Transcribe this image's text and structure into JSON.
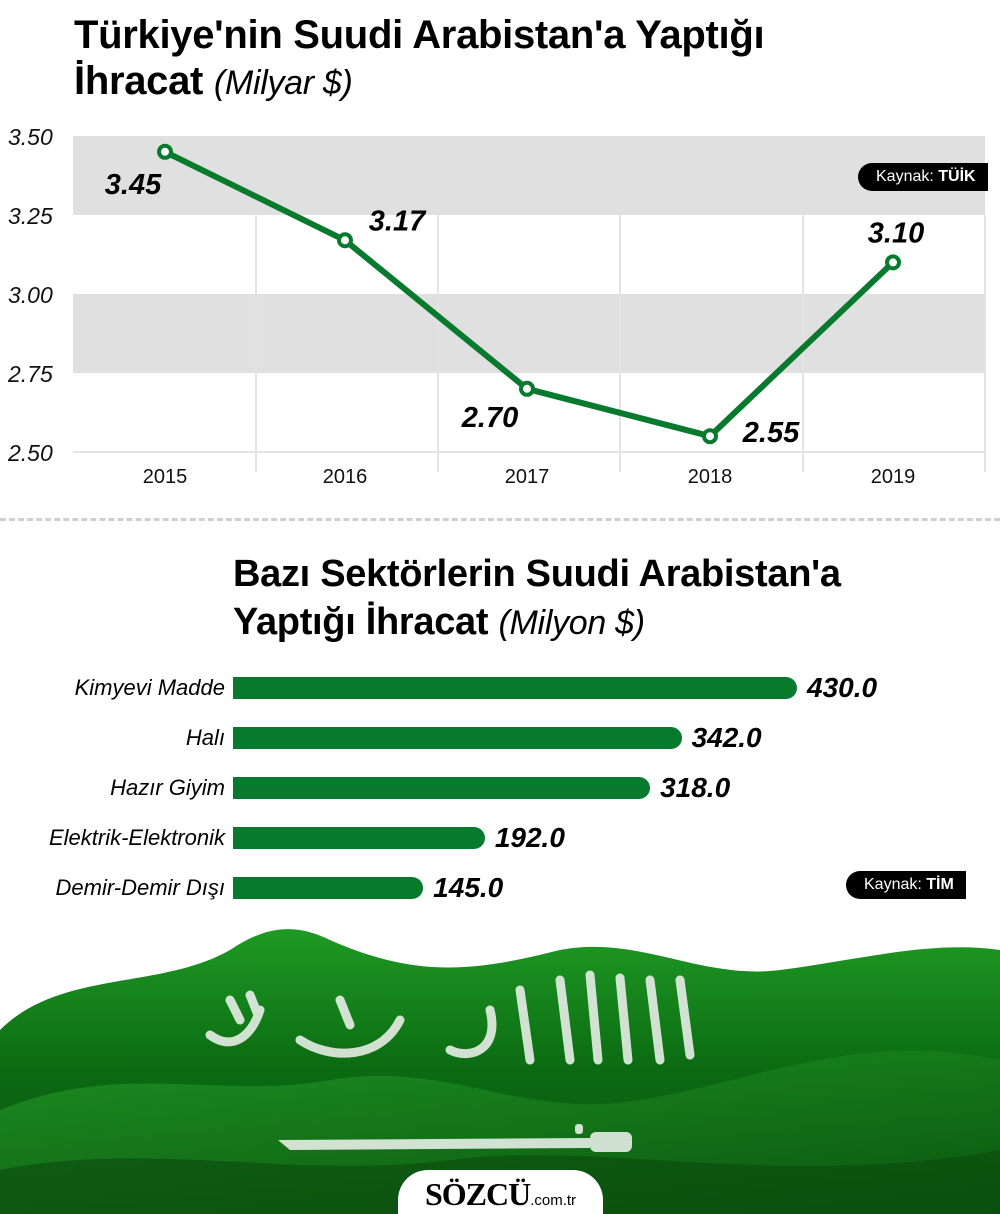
{
  "line_section": {
    "title": "Türkiye'nin Suudi Arabistan'a Yaptığı",
    "title_line2": "İhracat",
    "unit": "(Milyar $)",
    "source_prefix": "Kaynak:",
    "source_name": "TÜİK"
  },
  "bar_section": {
    "title": "Bazı Sektörlerin Suudi Arabistan'a",
    "title_line2": "Yaptığı İhracat",
    "unit": "(Milyon $)",
    "source_prefix": "Kaynak:",
    "source_name": "TİM"
  },
  "footer": {
    "brand": "SÖZCÜ",
    "domain": ".com.tr"
  },
  "colors": {
    "accent_green": "#077a2e",
    "band_gray": "#e0e0e0",
    "grid_gray": "#e4e4e4",
    "badge_black": "#000000"
  },
  "chart_data": [
    {
      "type": "line",
      "title": "Türkiye'nin Suudi Arabistan'a Yaptığı İhracat (Milyar $)",
      "xlabel": "",
      "ylabel": "Milyar $",
      "x": [
        "2015",
        "2016",
        "2017",
        "2018",
        "2019"
      ],
      "series": [
        {
          "name": "İhracat",
          "values": [
            3.45,
            3.17,
            2.7,
            2.55,
            3.1
          ]
        }
      ],
      "data_labels": [
        "3.45",
        "3.17",
        "2.70",
        "2.55",
        "3.10"
      ],
      "yticks": [
        "3.50",
        "3.25",
        "3.00",
        "2.75",
        "2.50"
      ],
      "ylim": [
        2.5,
        3.5
      ],
      "grid": true,
      "source": "Kaynak: TÜİK"
    },
    {
      "type": "bar",
      "orientation": "horizontal",
      "title": "Bazı Sektörlerin Suudi Arabistan'a Yaptığı İhracat (Milyon $)",
      "xlabel": "",
      "ylabel": "",
      "categories": [
        "Kimyevi Madde",
        "Halı",
        "Hazır Giyim",
        "Elektrik-Elektronik",
        "Demir-Demir Dışı"
      ],
      "values": [
        430.0,
        342.0,
        318.0,
        192.0,
        145.0
      ],
      "data_labels": [
        "430.0",
        "342.0",
        "318.0",
        "192.0",
        "145.0"
      ],
      "grid": false,
      "source": "Kaynak: TİM"
    }
  ]
}
